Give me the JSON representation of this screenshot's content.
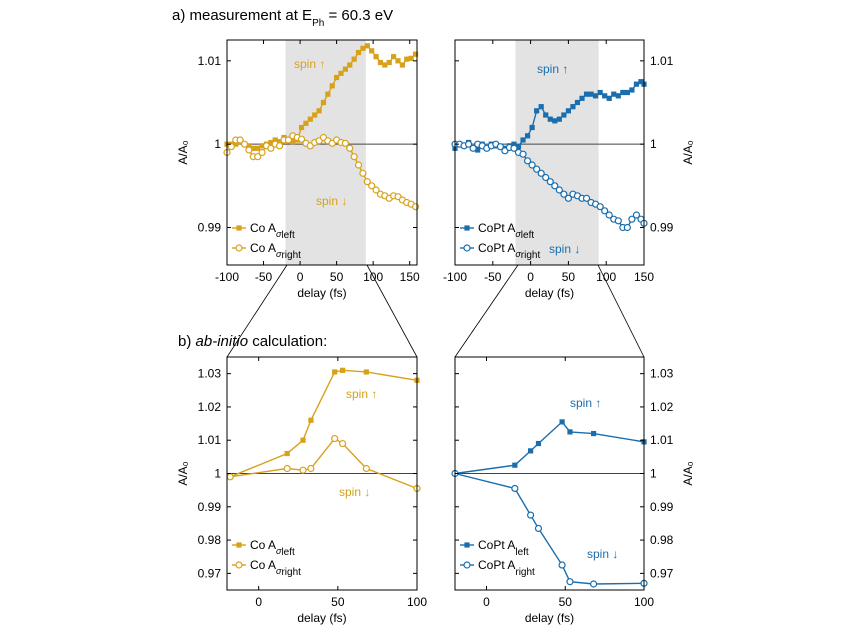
{
  "title_a": "a) measurement at E",
  "title_a_sub": "Ph",
  "title_a_rest": " = 60.3 eV",
  "title_b_prefix": "b) ",
  "title_b_italic": "ab-initio",
  "title_b_rest": " calculation:",
  "colors": {
    "co": "#D8A11A",
    "copt": "#1A6EAE",
    "shade": "#E3E3E3"
  },
  "chart_data": [
    {
      "id": "a-left",
      "type": "line",
      "xlabel": "delay (fs)",
      "ylabel": "A/A₀",
      "xlim": [
        -100,
        160
      ],
      "ylim": [
        0.9855,
        1.0125
      ],
      "xticks": [
        -100,
        -50,
        0,
        50,
        100,
        150
      ],
      "yticks": [
        0.99,
        1,
        1.01
      ],
      "ytick_labels": [
        "0.99",
        "1",
        "1.01"
      ],
      "ticks_side": "left",
      "shaded_x": [
        -20,
        90
      ],
      "reference_y": 1,
      "spin_up_label": "spin",
      "spin_down_label": "spin",
      "legend": [
        "Co Aσ left",
        "Co Aσ right"
      ],
      "series": [
        {
          "name": "Co Aσ left",
          "marker": "filled-square",
          "x": [
            -100,
            -94,
            -88,
            -82,
            -76,
            -70,
            -64,
            -58,
            -52,
            -46,
            -40,
            -34,
            -28,
            -22,
            -16,
            -10,
            -4,
            2,
            8,
            14,
            20,
            26,
            32,
            38,
            44,
            50,
            56,
            62,
            68,
            74,
            80,
            86,
            92,
            98,
            104,
            110,
            116,
            122,
            128,
            134,
            140,
            146,
            152,
            158
          ],
          "y": [
            1.0,
            1.0,
            1.0,
            1.0003,
            1.0,
            0.9998,
            0.9995,
            0.9995,
            0.9998,
            1.0,
            1.0002,
            1.0005,
            1.0003,
            1.0008,
            1.0005,
            1.0003,
            1.0005,
            1.002,
            1.0025,
            1.003,
            1.0035,
            1.004,
            1.005,
            1.006,
            1.007,
            1.008,
            1.0085,
            1.009,
            1.0095,
            1.0102,
            1.011,
            1.0115,
            1.0118,
            1.0112,
            1.0105,
            1.0098,
            1.0095,
            1.0098,
            1.0105,
            1.01,
            1.0095,
            1.0102,
            1.0103,
            1.0108
          ]
        },
        {
          "name": "Co Aσ right",
          "marker": "open-circle",
          "x": [
            -100,
            -94,
            -88,
            -82,
            -76,
            -70,
            -64,
            -58,
            -52,
            -46,
            -40,
            -34,
            -28,
            -22,
            -16,
            -10,
            -4,
            2,
            8,
            14,
            20,
            26,
            32,
            38,
            44,
            50,
            56,
            62,
            68,
            74,
            80,
            86,
            92,
            98,
            104,
            110,
            116,
            122,
            128,
            134,
            140,
            146,
            152,
            158
          ],
          "y": [
            0.999,
            0.9997,
            1.0005,
            1.0005,
            1.0,
            0.9993,
            0.9985,
            0.9985,
            0.999,
            0.9998,
            0.9995,
            1.0,
            0.9998,
            1.0005,
            1.0005,
            1.001,
            1.0008,
            1.0006,
            1.0001,
            0.9998,
            1.0002,
            1.0004,
            1.0008,
            1.0004,
            1.0001,
            1.0005,
            1.0002,
            1.0001,
            0.9995,
            0.9985,
            0.9975,
            0.9965,
            0.9955,
            0.995,
            0.9945,
            0.994,
            0.9938,
            0.9935,
            0.9938,
            0.9937,
            0.9933,
            0.993,
            0.9928,
            0.9925
          ]
        }
      ]
    },
    {
      "id": "a-right",
      "type": "line",
      "xlabel": "delay (fs)",
      "ylabel": "A/A₀",
      "xlim": [
        -100,
        150
      ],
      "ylim": [
        0.9855,
        1.0125
      ],
      "xticks": [
        -100,
        -50,
        0,
        50,
        100,
        150
      ],
      "yticks": [
        0.99,
        1,
        1.01
      ],
      "ytick_labels": [
        "0.99",
        "1",
        "1.01"
      ],
      "ticks_side": "right",
      "shaded_x": [
        -20,
        90
      ],
      "reference_y": 1,
      "spin_up_label": "spin",
      "spin_down_label": "spin",
      "legend": [
        "CoPt Aσ left",
        "CoPt Aσ right"
      ],
      "series": [
        {
          "name": "CoPt Aσ left",
          "marker": "filled-square",
          "x": [
            -100,
            -94,
            -88,
            -82,
            -76,
            -70,
            -64,
            -58,
            -52,
            -46,
            -40,
            -34,
            -28,
            -22,
            -16,
            -10,
            -4,
            2,
            8,
            14,
            20,
            26,
            32,
            38,
            44,
            50,
            56,
            62,
            68,
            74,
            80,
            86,
            92,
            98,
            104,
            110,
            116,
            122,
            128,
            134,
            140,
            146,
            150
          ],
          "y": [
            0.9995,
            1.0,
            0.9998,
            1.0002,
            0.9995,
            0.9993,
            1.0,
            0.9995,
            1.0,
            0.9998,
            0.9997,
            0.9995,
            0.9998,
            1.0,
            0.9997,
            1.0005,
            1.001,
            1.002,
            1.004,
            1.0045,
            1.0035,
            1.003,
            1.0028,
            1.003,
            1.0035,
            1.004,
            1.0045,
            1.005,
            1.0055,
            1.006,
            1.006,
            1.0058,
            1.0062,
            1.0058,
            1.0055,
            1.006,
            1.0058,
            1.0062,
            1.0062,
            1.0065,
            1.0072,
            1.0075,
            1.0072
          ]
        },
        {
          "name": "CoPt Aσ right",
          "marker": "open-circle",
          "x": [
            -100,
            -94,
            -88,
            -82,
            -76,
            -70,
            -64,
            -58,
            -52,
            -46,
            -40,
            -34,
            -28,
            -22,
            -16,
            -10,
            -4,
            2,
            8,
            14,
            20,
            26,
            32,
            38,
            44,
            50,
            56,
            62,
            68,
            74,
            80,
            86,
            92,
            98,
            104,
            110,
            116,
            122,
            128,
            134,
            140,
            146,
            150
          ],
          "y": [
            1.0,
            1.0,
            0.9998,
            1.0,
            0.9995,
            1.0,
            0.9998,
            0.9995,
            0.9998,
            1.0,
            0.9997,
            0.9992,
            0.9996,
            0.9995,
            0.999,
            0.9988,
            0.998,
            0.9975,
            0.997,
            0.9965,
            0.996,
            0.9955,
            0.995,
            0.9945,
            0.994,
            0.9935,
            0.994,
            0.9938,
            0.9935,
            0.9935,
            0.993,
            0.9928,
            0.9925,
            0.992,
            0.9915,
            0.991,
            0.9908,
            0.99,
            0.99,
            0.991,
            0.9915,
            0.991,
            0.9905
          ]
        }
      ]
    },
    {
      "id": "b-left",
      "type": "line",
      "xlabel": "delay (fs)",
      "ylabel": "A/A₀",
      "xlim": [
        -20,
        100
      ],
      "ylim": [
        0.965,
        1.035
      ],
      "xticks": [
        0,
        50,
        100
      ],
      "yticks": [
        0.97,
        0.98,
        0.99,
        1,
        1.01,
        1.02,
        1.03
      ],
      "ytick_labels": [
        "0.97",
        "0.98",
        "0.99",
        "1",
        "1.01",
        "1.02",
        "1.03"
      ],
      "ticks_side": "left",
      "reference_y": 1,
      "spin_up_label": "spin",
      "spin_down_label": "spin",
      "legend": [
        "Co Aσ left",
        "Co Aσ right"
      ],
      "series": [
        {
          "name": "Co Aσ left",
          "marker": "filled-square",
          "x": [
            -18,
            18,
            28,
            33,
            48,
            53,
            68,
            100
          ],
          "y": [
            0.999,
            1.006,
            1.01,
            1.016,
            1.0305,
            1.031,
            1.0305,
            1.028
          ]
        },
        {
          "name": "Co Aσ right",
          "marker": "open-circle",
          "x": [
            -18,
            18,
            28,
            33,
            48,
            53,
            68,
            100
          ],
          "y": [
            0.999,
            1.0015,
            1.001,
            1.0015,
            1.0105,
            1.009,
            1.0015,
            0.9955
          ]
        }
      ]
    },
    {
      "id": "b-right",
      "type": "line",
      "xlabel": "delay (fs)",
      "ylabel": "A/A₀",
      "xlim": [
        -20,
        100
      ],
      "ylim": [
        0.965,
        1.035
      ],
      "xticks": [
        0,
        50,
        100
      ],
      "yticks": [
        0.97,
        0.98,
        0.99,
        1,
        1.01,
        1.02,
        1.03
      ],
      "ytick_labels": [
        "0.97",
        "0.98",
        "0.99",
        "1",
        "1.01",
        "1.02",
        "1.03"
      ],
      "ticks_side": "right",
      "reference_y": 1,
      "spin_up_label": "spin",
      "spin_down_label": "spin",
      "legend": [
        "CoPt A left",
        "CoPt A right"
      ],
      "series": [
        {
          "name": "CoPt A left",
          "marker": "filled-square",
          "x": [
            -20,
            18,
            28,
            33,
            48,
            53,
            68,
            100
          ],
          "y": [
            1.0,
            1.0025,
            1.0068,
            1.009,
            1.0155,
            1.0125,
            1.012,
            1.0095
          ]
        },
        {
          "name": "CoPt A right",
          "marker": "open-circle",
          "x": [
            -20,
            18,
            28,
            33,
            48,
            53,
            68,
            100
          ],
          "y": [
            1.0,
            0.9955,
            0.9875,
            0.9835,
            0.9725,
            0.9675,
            0.9668,
            0.967
          ]
        }
      ]
    }
  ]
}
